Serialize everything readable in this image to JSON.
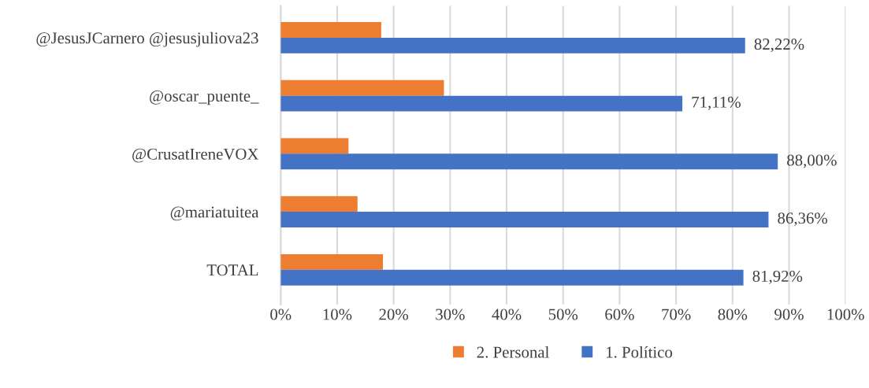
{
  "chart_data": {
    "type": "bar",
    "orientation": "horizontal",
    "categories": [
      "@JesusJCarnero @jesusjuliova23",
      "@oscar_puente_",
      "@CrusatIreneVOX",
      "@mariatuitea",
      "TOTAL"
    ],
    "series": [
      {
        "name": "2. Personal",
        "color": "#ed7d31",
        "values": [
          17.8,
          28.9,
          12.0,
          13.6,
          18.1
        ]
      },
      {
        "name": "1. Político",
        "color": "#4472c4",
        "values": [
          82.22,
          71.11,
          88.0,
          86.36,
          81.92
        ],
        "value_labels": [
          "82,22%",
          "71,11%",
          "88,00%",
          "86,36%",
          "81,92%"
        ]
      }
    ],
    "xlim": [
      0,
      100
    ],
    "xticks": [
      {
        "value": 0,
        "label": "0%"
      },
      {
        "value": 10,
        "label": "10%"
      },
      {
        "value": 20,
        "label": "20%"
      },
      {
        "value": 30,
        "label": "30%"
      },
      {
        "value": 40,
        "label": "40%"
      },
      {
        "value": 50,
        "label": "50%"
      },
      {
        "value": 60,
        "label": "60%"
      },
      {
        "value": 70,
        "label": "70%"
      },
      {
        "value": 80,
        "label": "80%"
      },
      {
        "value": 90,
        "label": "90%"
      },
      {
        "value": 100,
        "label": "100%"
      }
    ],
    "grid": "x",
    "legend": "bottom"
  }
}
